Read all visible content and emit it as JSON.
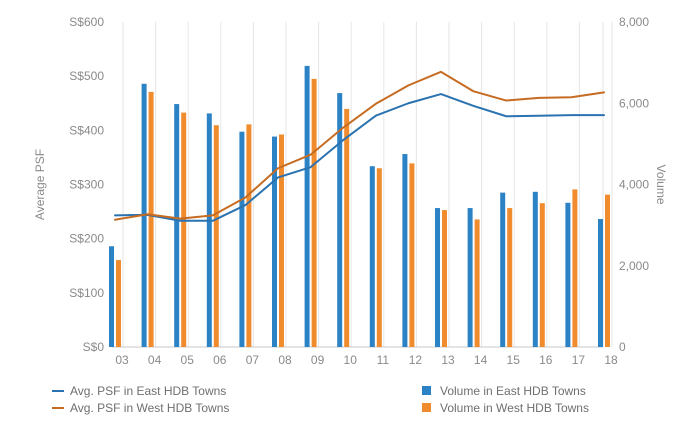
{
  "chart_data": {
    "type": "bar",
    "title": "",
    "categories": [
      "03",
      "04",
      "05",
      "06",
      "07",
      "08",
      "09",
      "10",
      "11",
      "12",
      "13",
      "14",
      "15",
      "16",
      "17",
      "18"
    ],
    "ylabel_left": "Average PSF",
    "ylabel_right": "Volume",
    "yticks_left": [
      "S$0",
      "S$100",
      "S$200",
      "S$300",
      "S$400",
      "S$500",
      "S$600"
    ],
    "yticks_right": [
      "0",
      "2,000",
      "4,000",
      "6,000",
      "8,000"
    ],
    "ylim_left": [
      0,
      600
    ],
    "ylim_right": [
      0,
      8000
    ],
    "grid": "vertical-lines",
    "legend_position": "bottom",
    "series": [
      {
        "name": "Volume in East HDB Towns",
        "kind": "bar",
        "axis": "right",
        "color": "#2b82c4",
        "values": [
          2480,
          6480,
          5980,
          5750,
          5300,
          5180,
          6920,
          6250,
          4450,
          4750,
          3420,
          3420,
          3800,
          3820,
          3550,
          3150
        ]
      },
      {
        "name": "Volume in West HDB Towns",
        "kind": "bar",
        "axis": "right",
        "color": "#f08c2e",
        "values": [
          2140,
          6280,
          5770,
          5460,
          5480,
          5230,
          6600,
          5860,
          4400,
          4520,
          3370,
          3140,
          3420,
          3540,
          3880,
          3750
        ]
      },
      {
        "name": "Avg. PSF in East HDB Towns",
        "kind": "line",
        "axis": "left",
        "color": "#2b73b0",
        "values": [
          243,
          244,
          233,
          233,
          262,
          313,
          332,
          382,
          427,
          450,
          467,
          445,
          426,
          427,
          428,
          428
        ]
      },
      {
        "name": "Avg. PSF in West HDB Towns",
        "kind": "line",
        "axis": "left",
        "color": "#c66c22",
        "values": [
          235,
          245,
          237,
          243,
          276,
          330,
          355,
          405,
          449,
          483,
          508,
          472,
          455,
          460,
          461,
          470
        ]
      }
    ],
    "legend": [
      {
        "label": "Avg. PSF in East HDB Towns",
        "kind": "line",
        "color": "#2b73b0"
      },
      {
        "label": "Avg. PSF in West HDB Towns",
        "kind": "line",
        "color": "#c66c22"
      },
      {
        "label": "Volume in East HDB Towns",
        "kind": "bar",
        "color": "#2b82c4"
      },
      {
        "label": "Volume in West HDB Towns",
        "kind": "bar",
        "color": "#f08c2e"
      }
    ],
    "colors": {
      "grid": "#e6e6e6",
      "axis_line": "#c9c9c9",
      "text": "#8a8a8a"
    }
  }
}
